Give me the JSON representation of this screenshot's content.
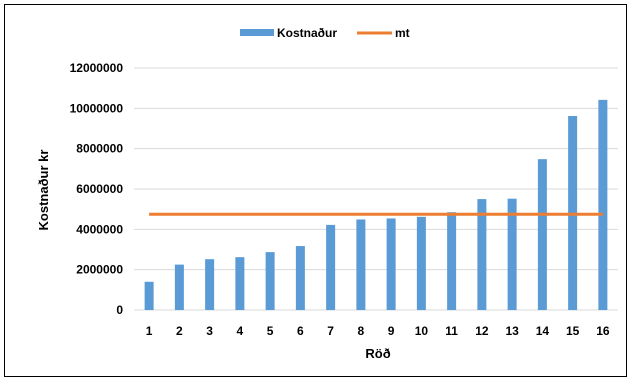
{
  "chart_data": {
    "type": "bar",
    "categories": [
      "1",
      "2",
      "3",
      "4",
      "5",
      "6",
      "7",
      "8",
      "9",
      "10",
      "11",
      "12",
      "13",
      "14",
      "15",
      "16"
    ],
    "series": [
      {
        "name": "Kostnaður",
        "type": "bar",
        "color": "#5B9BD5",
        "values": [
          1400000,
          2250000,
          2520000,
          2620000,
          2870000,
          3170000,
          4220000,
          4490000,
          4540000,
          4620000,
          4850000,
          5500000,
          5520000,
          7480000,
          9620000,
          10420000
        ]
      },
      {
        "name": "mt",
        "type": "line",
        "color": "#ED7D31",
        "value": 4750000
      }
    ],
    "xlabel": "Röð",
    "ylabel": "Kostnaður kr",
    "ylim": [
      0,
      12000000
    ],
    "yticks": [
      "0",
      "2000000",
      "4000000",
      "6000000",
      "8000000",
      "10000000",
      "12000000"
    ],
    "grid": true,
    "legend_position": "top"
  }
}
